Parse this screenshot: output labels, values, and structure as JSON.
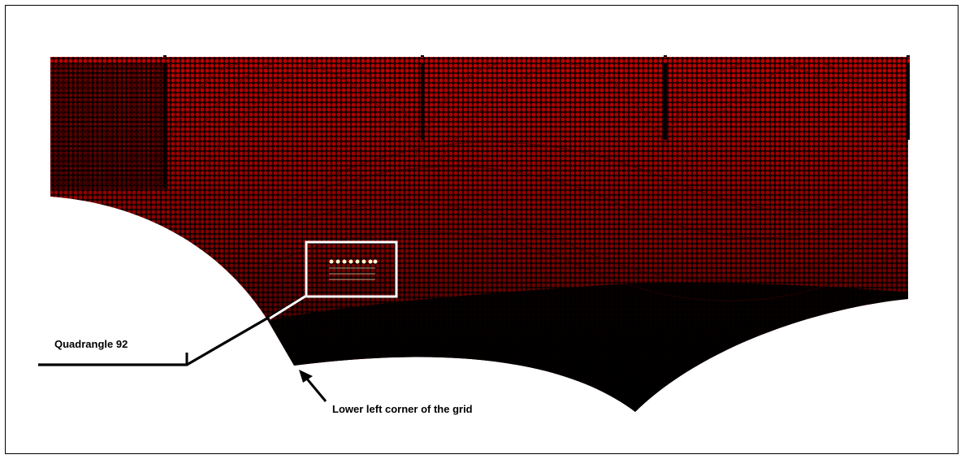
{
  "figure": {
    "callout_quadrangle": "Quadrangle 92",
    "callout_corner": "Lower left corner of the grid"
  },
  "colors": {
    "mesh_red": "#c00000",
    "mesh_dark": "#000000",
    "highlight_box": "#ffffff",
    "highlight_cells": "#fffbd0"
  }
}
